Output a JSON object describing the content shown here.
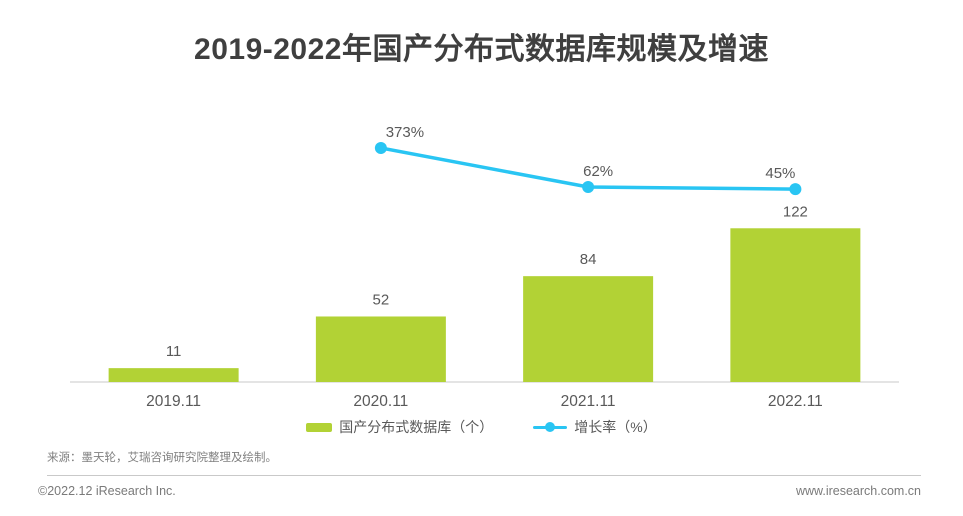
{
  "title": "2019-2022年国产分布式数据库规模及增速",
  "chart_data": {
    "type": "bar+line",
    "title": "2019-2022年国产分布式数据库规模及增速",
    "categories": [
      "2019.11",
      "2020.11",
      "2021.11",
      "2022.11"
    ],
    "series": [
      {
        "name": "国产分布式数据库（个）",
        "type": "bar",
        "values": [
          11,
          52,
          84,
          122
        ],
        "color": "#b2d235"
      },
      {
        "name": "增长率（%）",
        "type": "line",
        "values": [
          null,
          373,
          62,
          45
        ],
        "unit": "%",
        "color": "#29c5f3"
      }
    ],
    "data_labels": {
      "bar": [
        "11",
        "52",
        "84",
        "122"
      ],
      "line": [
        "",
        "373%",
        "62%",
        "45%"
      ]
    },
    "xlabel": "",
    "ylabel": "",
    "legend_position": "bottom",
    "grid": false,
    "axes_ticks_hidden": true
  },
  "colors": {
    "bar": "#b2d235",
    "line": "#29c5f3",
    "title_text": "#3f3f3f",
    "label_text": "#595959",
    "tick_text": "#595959",
    "muted_text": "#7f7f7f",
    "axis_line": "#dcdcdc",
    "divider": "#c9c9c9"
  },
  "source_note": "来源：墨天轮，艾瑞咨询研究院整理及绘制。",
  "footer": {
    "copyright": "©2022.12 iResearch Inc.",
    "website": "www.iresearch.com.cn"
  }
}
